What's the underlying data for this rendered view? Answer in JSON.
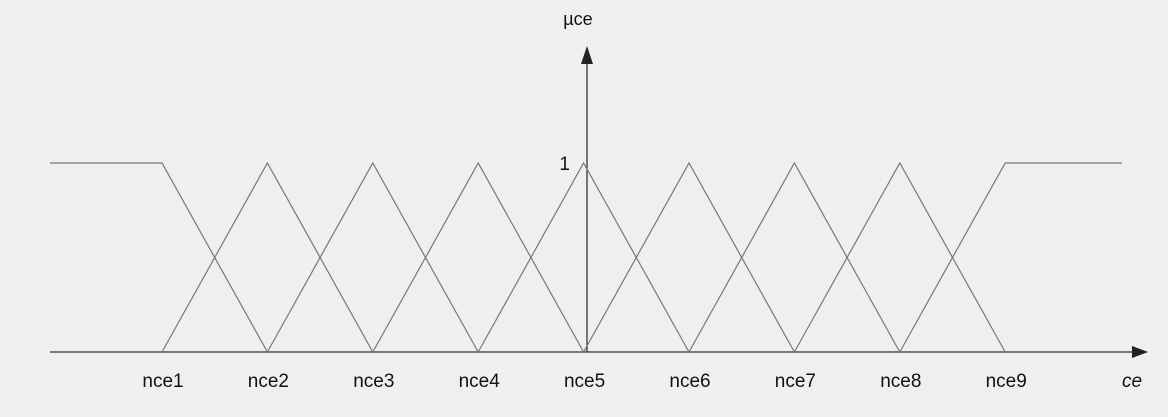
{
  "y_axis_label": "µce",
  "peak_label": "1",
  "x_axis_label": "ce",
  "sets": [
    "nce1",
    "nce2",
    "nce3",
    "nce4",
    "nce5",
    "nce6",
    "nce7",
    "nce8",
    "nce9"
  ]
}
